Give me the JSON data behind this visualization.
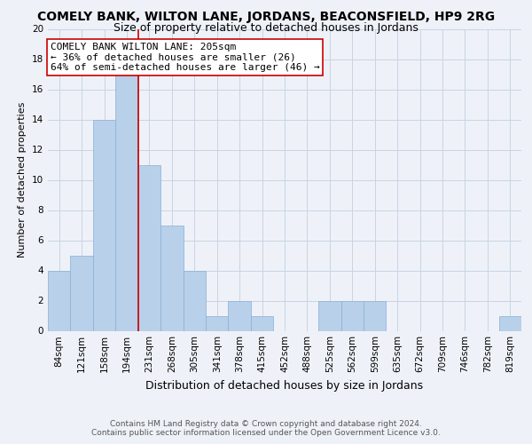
{
  "title": "COMELY BANK, WILTON LANE, JORDANS, BEACONSFIELD, HP9 2RG",
  "subtitle": "Size of property relative to detached houses in Jordans",
  "xlabel": "Distribution of detached houses by size in Jordans",
  "ylabel": "Number of detached properties",
  "footer_line1": "Contains HM Land Registry data © Crown copyright and database right 2024.",
  "footer_line2": "Contains public sector information licensed under the Open Government Licence v3.0.",
  "annotation_line1": "COMELY BANK WILTON LANE: 205sqm",
  "annotation_line2": "← 36% of detached houses are smaller (26)",
  "annotation_line3": "64% of semi-detached houses are larger (46) →",
  "bar_labels": [
    "84sqm",
    "121sqm",
    "158sqm",
    "194sqm",
    "231sqm",
    "268sqm",
    "305sqm",
    "341sqm",
    "378sqm",
    "415sqm",
    "452sqm",
    "488sqm",
    "525sqm",
    "562sqm",
    "599sqm",
    "635sqm",
    "672sqm",
    "709sqm",
    "746sqm",
    "782sqm",
    "819sqm"
  ],
  "bar_values": [
    4,
    5,
    14,
    17,
    11,
    7,
    4,
    1,
    2,
    1,
    0,
    0,
    2,
    2,
    2,
    0,
    0,
    0,
    0,
    0,
    1
  ],
  "bar_color": "#b8d0ea",
  "bar_edge_color": "#8ab0d4",
  "vline_index": 4,
  "vline_color": "#cc0000",
  "ylim": [
    0,
    20
  ],
  "yticks": [
    0,
    2,
    4,
    6,
    8,
    10,
    12,
    14,
    16,
    18,
    20
  ],
  "background_color": "#eef2f8",
  "annotation_box_color": "#ffffff",
  "annotation_box_edge": "#cc0000",
  "grid_color": "#c8d4e4",
  "title_fontsize": 10,
  "subtitle_fontsize": 9,
  "xlabel_fontsize": 9,
  "ylabel_fontsize": 8,
  "tick_fontsize": 7.5,
  "annotation_fontsize": 8,
  "footer_fontsize": 6.5
}
